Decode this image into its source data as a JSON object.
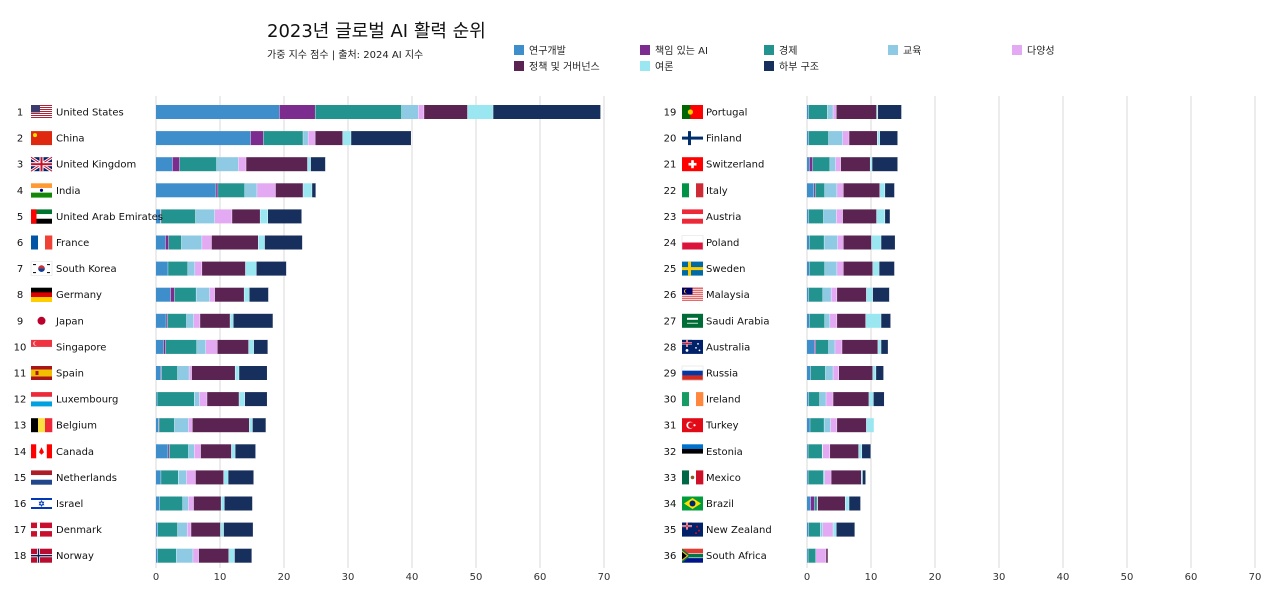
{
  "title": "2023년 글로벌 AI 활력 순위",
  "subtitle": "가중 지수 점수 | 출처: 2024 AI 지수",
  "chart_data": {
    "type": "bar",
    "orientation": "horizontal-stacked",
    "title": "2023년 글로벌 AI 활력 순위",
    "subtitle": "가중 지수 점수 | 출처: 2024 AI 지수",
    "xlim": [
      0,
      70
    ],
    "xticks": [
      0,
      10,
      20,
      30,
      40,
      50,
      60,
      70
    ],
    "grid": true,
    "legend_position": "top-right",
    "series": [
      {
        "name": "연구개발",
        "color": "#3F8ECC"
      },
      {
        "name": "책임 있는 AI",
        "color": "#7B2C8E"
      },
      {
        "name": "경제",
        "color": "#23938F"
      },
      {
        "name": "교육",
        "color": "#8ECAE3"
      },
      {
        "name": "다양성",
        "color": "#E3A9F3"
      },
      {
        "name": "정책 및 거버넌스",
        "color": "#5A2352"
      },
      {
        "name": "여론",
        "color": "#9BE7F1"
      },
      {
        "name": "하부 구조",
        "color": "#172F5C"
      }
    ],
    "countries": [
      {
        "rank": 1,
        "name": "United States",
        "flag": "us",
        "values": [
          19.3,
          5.6,
          13.5,
          2.6,
          0.9,
          6.8,
          4.0,
          16.8
        ]
      },
      {
        "rank": 2,
        "name": "China",
        "flag": "cn",
        "values": [
          14.8,
          2.0,
          6.2,
          0.8,
          1.1,
          4.3,
          1.3,
          9.4
        ]
      },
      {
        "rank": 3,
        "name": "United Kingdom",
        "flag": "gb",
        "values": [
          2.6,
          1.1,
          5.8,
          3.4,
          1.2,
          9.6,
          0.5,
          2.3
        ]
      },
      {
        "rank": 4,
        "name": "India",
        "flag": "in",
        "values": [
          9.4,
          0.3,
          4.2,
          1.9,
          2.9,
          4.3,
          1.4,
          0.6
        ]
      },
      {
        "rank": 5,
        "name": "United Arab Emirates",
        "flag": "ae",
        "values": [
          0.7,
          0.1,
          5.4,
          3.0,
          2.7,
          4.4,
          1.2,
          5.3
        ]
      },
      {
        "rank": 6,
        "name": "France",
        "flag": "fr",
        "values": [
          1.5,
          0.5,
          2.0,
          3.2,
          1.5,
          7.3,
          1.0,
          5.9
        ]
      },
      {
        "rank": 7,
        "name": "South Korea",
        "flag": "kr",
        "values": [
          1.9,
          0.0,
          3.1,
          1.1,
          1.1,
          6.8,
          1.7,
          4.7
        ]
      },
      {
        "rank": 8,
        "name": "Germany",
        "flag": "de",
        "values": [
          2.3,
          0.6,
          3.4,
          2.1,
          0.8,
          4.6,
          0.8,
          3.0
        ]
      },
      {
        "rank": 9,
        "name": "Japan",
        "flag": "jp",
        "values": [
          1.6,
          0.2,
          3.0,
          1.1,
          1.0,
          4.7,
          0.5,
          6.2
        ]
      },
      {
        "rank": 10,
        "name": "Singapore",
        "flag": "sg",
        "values": [
          1.2,
          0.3,
          4.9,
          1.4,
          1.8,
          4.9,
          0.8,
          2.2
        ]
      },
      {
        "rank": 11,
        "name": "Spain",
        "flag": "es",
        "values": [
          0.8,
          0.1,
          2.5,
          1.8,
          0.4,
          6.8,
          0.6,
          4.4
        ]
      },
      {
        "rank": 12,
        "name": "Luxembourg",
        "flag": "lu",
        "values": [
          0.2,
          0.0,
          5.8,
          0.8,
          1.2,
          5.0,
          0.9,
          3.5
        ]
      },
      {
        "rank": 13,
        "name": "Belgium",
        "flag": "be",
        "values": [
          0.4,
          0.1,
          2.4,
          2.2,
          0.6,
          8.9,
          0.5,
          2.1
        ]
      },
      {
        "rank": 14,
        "name": "Canada",
        "flag": "ca",
        "values": [
          1.9,
          0.2,
          3.0,
          0.9,
          1.0,
          4.8,
          0.6,
          3.2
        ]
      },
      {
        "rank": 15,
        "name": "Netherlands",
        "flag": "nl",
        "values": [
          0.8,
          0.0,
          2.7,
          1.3,
          1.4,
          4.4,
          0.7,
          4.0
        ]
      },
      {
        "rank": 16,
        "name": "Israel",
        "flag": "il",
        "values": [
          0.6,
          0.0,
          3.6,
          0.9,
          0.8,
          4.3,
          0.5,
          4.4
        ]
      },
      {
        "rank": 17,
        "name": "Denmark",
        "flag": "dk",
        "values": [
          0.3,
          0.0,
          3.1,
          1.5,
          0.6,
          4.6,
          0.5,
          4.6
        ]
      },
      {
        "rank": 18,
        "name": "Norway",
        "flag": "no",
        "values": [
          0.3,
          0.0,
          2.9,
          2.6,
          0.9,
          4.7,
          0.9,
          2.7
        ]
      },
      {
        "rank": 19,
        "name": "Portugal",
        "flag": "pt",
        "values": [
          0.3,
          0.0,
          2.9,
          0.9,
          0.5,
          6.3,
          0.2,
          3.7
        ]
      },
      {
        "rank": 20,
        "name": "Finland",
        "flag": "fi",
        "values": [
          0.3,
          0.0,
          3.1,
          2.2,
          1.0,
          4.4,
          0.4,
          2.8
        ]
      },
      {
        "rank": 21,
        "name": "Switzerland",
        "flag": "ch",
        "values": [
          0.4,
          0.5,
          2.7,
          0.9,
          0.8,
          4.6,
          0.3,
          4.0
        ]
      },
      {
        "rank": 22,
        "name": "Italy",
        "flag": "it",
        "values": [
          1.1,
          0.2,
          1.5,
          1.9,
          1.0,
          5.7,
          0.8,
          1.5
        ]
      },
      {
        "rank": 23,
        "name": "Austria",
        "flag": "at",
        "values": [
          0.3,
          0.0,
          2.3,
          2.0,
          1.0,
          5.3,
          1.3,
          0.8
        ]
      },
      {
        "rank": 24,
        "name": "Poland",
        "flag": "pl",
        "values": [
          0.4,
          0.0,
          2.3,
          2.1,
          0.9,
          4.4,
          1.5,
          2.2
        ]
      },
      {
        "rank": 25,
        "name": "Sweden",
        "flag": "se",
        "values": [
          0.4,
          0.0,
          2.4,
          1.9,
          1.0,
          4.6,
          1.0,
          2.4
        ]
      },
      {
        "rank": 26,
        "name": "Malaysia",
        "flag": "my",
        "values": [
          0.3,
          0.0,
          2.2,
          1.3,
          0.9,
          4.6,
          1.0,
          2.6
        ]
      },
      {
        "rank": 27,
        "name": "Saudi Arabia",
        "flag": "sa",
        "values": [
          0.4,
          0.0,
          2.4,
          0.8,
          1.1,
          4.5,
          2.4,
          1.5
        ]
      },
      {
        "rank": 28,
        "name": "Australia",
        "flag": "au",
        "values": [
          1.2,
          0.2,
          2.0,
          1.0,
          1.1,
          5.6,
          0.5,
          1.1
        ]
      },
      {
        "rank": 29,
        "name": "Russia",
        "flag": "ru",
        "values": [
          0.6,
          0.0,
          2.3,
          1.2,
          0.9,
          5.3,
          0.5,
          1.2
        ]
      },
      {
        "rank": 30,
        "name": "Ireland",
        "flag": "ie",
        "values": [
          0.3,
          0.0,
          1.7,
          1.0,
          1.1,
          5.6,
          0.7,
          1.7
        ]
      },
      {
        "rank": 31,
        "name": "Turkey",
        "flag": "tr",
        "values": [
          0.5,
          0.0,
          2.2,
          1.0,
          1.0,
          4.6,
          1.2,
          0.0
        ]
      },
      {
        "rank": 32,
        "name": "Estonia",
        "flag": "ee",
        "values": [
          0.2,
          0.0,
          2.2,
          0.1,
          1.1,
          4.5,
          0.5,
          1.4
        ]
      },
      {
        "rank": 33,
        "name": "Mexico",
        "flag": "mx",
        "values": [
          0.2,
          0.0,
          2.4,
          0.2,
          1.0,
          4.7,
          0.2,
          0.5
        ]
      },
      {
        "rank": 34,
        "name": "Brazil",
        "flag": "br",
        "values": [
          0.6,
          0.6,
          0.4,
          0.0,
          0.1,
          4.3,
          0.6,
          1.8
        ]
      },
      {
        "rank": 35,
        "name": "New Zealand",
        "flag": "nz",
        "values": [
          0.3,
          0.0,
          1.8,
          0.4,
          1.6,
          0.0,
          0.5,
          2.9
        ]
      },
      {
        "rank": 36,
        "name": "South Africa",
        "flag": "za",
        "values": [
          0.2,
          0.0,
          1.2,
          0.0,
          1.6,
          0.3,
          0.0,
          0.0
        ]
      }
    ]
  }
}
